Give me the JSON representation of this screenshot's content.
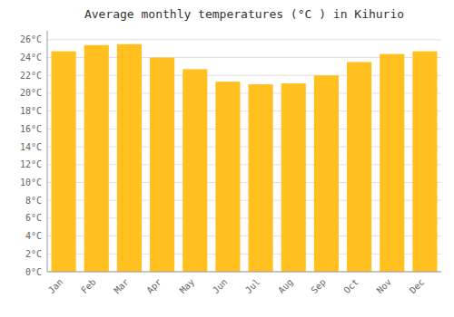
{
  "chart_data": {
    "type": "bar",
    "title": "Average monthly temperatures (°C ) in Kihurio",
    "categories": [
      "Jan",
      "Feb",
      "Mar",
      "Apr",
      "May",
      "Jun",
      "Jul",
      "Aug",
      "Sep",
      "Oct",
      "Nov",
      "Dec"
    ],
    "values": [
      24.7,
      25.4,
      25.5,
      24.0,
      22.7,
      21.3,
      21.0,
      21.1,
      22.0,
      23.5,
      24.4,
      24.7
    ],
    "color": "#FFC020",
    "ylim": [
      0,
      27
    ],
    "yticks": [
      {
        "value": 0,
        "label": "0°C"
      },
      {
        "value": 2,
        "label": "2°C"
      },
      {
        "value": 4,
        "label": "4°C"
      },
      {
        "value": 6,
        "label": "6°C"
      },
      {
        "value": 8,
        "label": "8°C"
      },
      {
        "value": 10,
        "label": "10°C"
      },
      {
        "value": 12,
        "label": "12°C"
      },
      {
        "value": 14,
        "label": "14°C"
      },
      {
        "value": 16,
        "label": "16°C"
      },
      {
        "value": 18,
        "label": "18°C"
      },
      {
        "value": 20,
        "label": "20°C"
      },
      {
        "value": 22,
        "label": "22°C"
      },
      {
        "value": 24,
        "label": "24°C"
      },
      {
        "value": 26,
        "label": "26°C"
      }
    ],
    "grid": true
  }
}
